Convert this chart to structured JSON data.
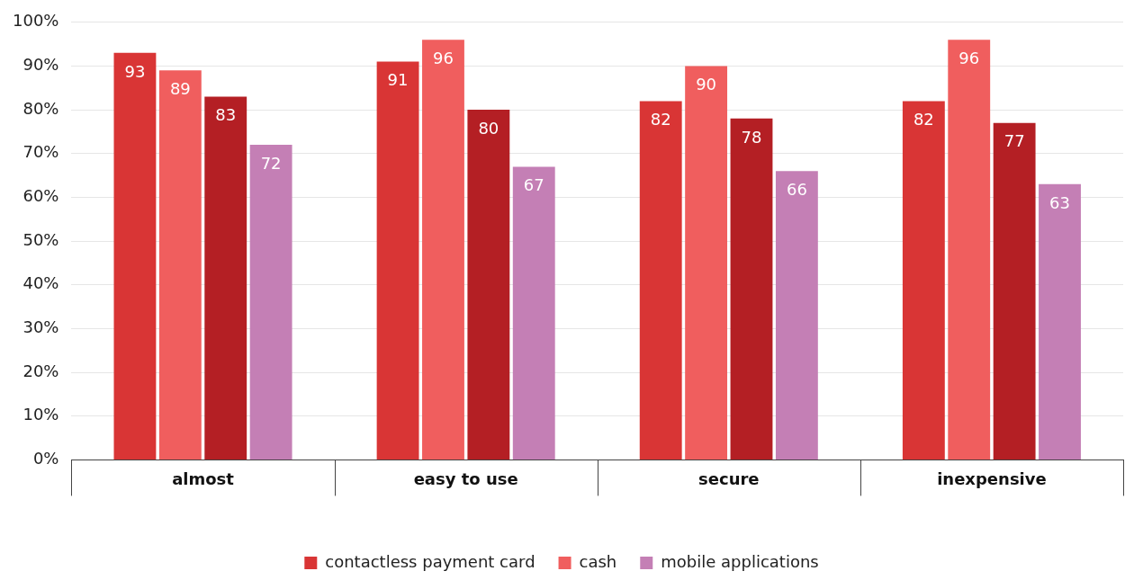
{
  "chart_data": {
    "type": "bar",
    "categories": [
      "almost",
      "easy to use",
      "secure",
      "inexpensive"
    ],
    "series": [
      {
        "name": "contactless payment card",
        "color": "#d93535",
        "values": [
          93,
          91,
          82,
          82
        ]
      },
      {
        "name": "cash",
        "color": "#f05e5e",
        "values": [
          89,
          96,
          90,
          96
        ]
      },
      {
        "color": "#b41f24",
        "values": [
          83,
          80,
          78,
          77
        ]
      },
      {
        "name": "mobile applications",
        "color": "#c47fb5",
        "values": [
          72,
          67,
          66,
          63
        ]
      }
    ],
    "ylim": [
      0,
      100
    ],
    "yticks": [
      {
        "value": 0,
        "label": "0%"
      },
      {
        "value": 10,
        "label": "10%"
      },
      {
        "value": 20,
        "label": "20%"
      },
      {
        "value": 30,
        "label": "30%"
      },
      {
        "value": 40,
        "label": "40%"
      },
      {
        "value": 50,
        "label": "50%"
      },
      {
        "value": 60,
        "label": "60%"
      },
      {
        "value": 70,
        "label": "70%"
      },
      {
        "value": 80,
        "label": "80%"
      },
      {
        "value": 90,
        "label": "90%"
      },
      {
        "value": 100,
        "label": "100%"
      }
    ],
    "grid": "y",
    "legend": "bottom",
    "data_labels": true
  }
}
